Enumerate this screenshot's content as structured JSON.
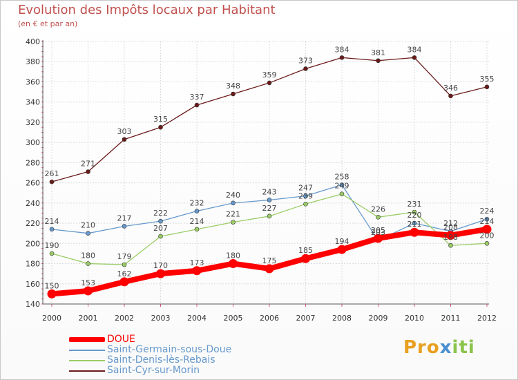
{
  "header": {
    "title": "Evolution des Impôts locaux par Habitant",
    "subtitle": "(en € et par an)"
  },
  "logo": {
    "text": "Proxiti",
    "parts": [
      "Pro",
      "x",
      "iti"
    ],
    "colors": [
      "#e8a020",
      "#4a8fd0",
      "#8bc34a"
    ]
  },
  "chart_data": {
    "type": "line",
    "title": "Evolution des Impôts locaux par Habitant",
    "subtitle": "(en € et par an)",
    "xlabel": "",
    "ylabel": "",
    "categories": [
      "2000",
      "2001",
      "2002",
      "2003",
      "2004",
      "2005",
      "2006",
      "2007",
      "2008",
      "2009",
      "2010",
      "2011",
      "2012"
    ],
    "ylim": [
      140,
      400
    ],
    "yticks": [
      140,
      160,
      180,
      200,
      220,
      240,
      260,
      280,
      300,
      320,
      340,
      360,
      380,
      400
    ],
    "grid": true,
    "legend_position": "bottom-left",
    "series": [
      {
        "name": "DOUE",
        "color": "#ff0000",
        "values": [
          150,
          153,
          162,
          170,
          173,
          180,
          175,
          185,
          194,
          205,
          211,
          208,
          214
        ],
        "labels": [
          "150",
          "153",
          "162",
          "170",
          "173",
          "180",
          "175",
          "185",
          "194",
          "205",
          "211",
          "208",
          "214"
        ]
      },
      {
        "name": "Saint-Germain-sous-Doue",
        "color": "#6699cc",
        "values": [
          214,
          210,
          217,
          222,
          232,
          240,
          243,
          247,
          258,
          203,
          220,
          212,
          224
        ],
        "labels": [
          "214",
          "210",
          "217",
          "222",
          "232",
          "240",
          "243",
          "247",
          "258",
          "203",
          "220",
          "212",
          "224"
        ]
      },
      {
        "name": "Saint-Denis-lès-Rebais",
        "color": "#99cc66",
        "values": [
          190,
          180,
          179,
          207,
          214,
          221,
          227,
          239,
          249,
          226,
          231,
          198,
          200
        ],
        "labels": [
          "190",
          "180",
          "179",
          "207",
          "214",
          "221",
          "227",
          "239",
          "249",
          "226",
          "231",
          "198",
          "200"
        ]
      },
      {
        "name": "Saint-Cyr-sur-Morin",
        "color": "#6b1a1a",
        "values": [
          261,
          271,
          303,
          315,
          337,
          348,
          359,
          373,
          384,
          381,
          384,
          346,
          355
        ],
        "labels": [
          "261",
          "271",
          "303",
          "315",
          "337",
          "348",
          "359",
          "373",
          "384",
          "381",
          "384",
          "346",
          "355"
        ]
      }
    ]
  }
}
